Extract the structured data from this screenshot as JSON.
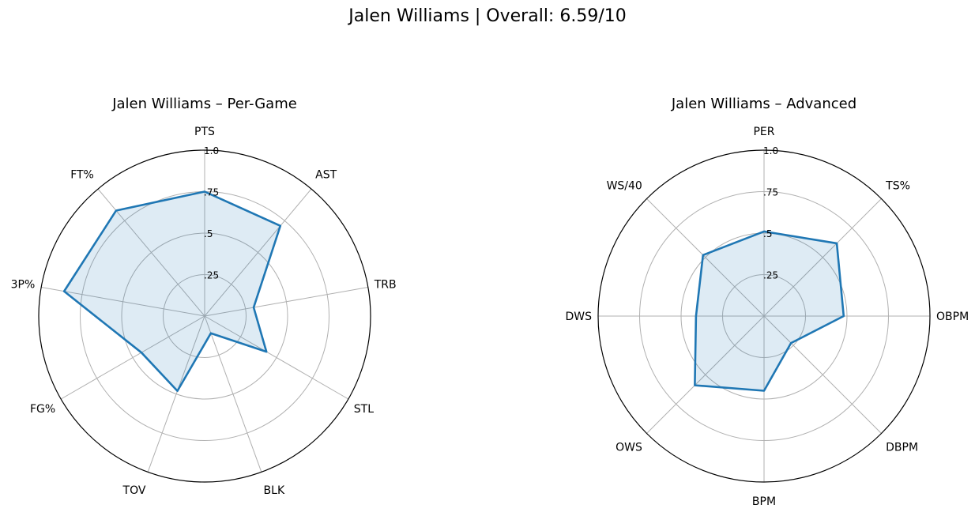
{
  "figure_title": "Jalen Williams | Overall: 6.59/10",
  "colors": {
    "line": "#1f77b4",
    "fill": "#1f77b4",
    "grid": "#b0b0b0",
    "frame": "#000000"
  },
  "chart_data": [
    {
      "type": "radar",
      "title": "Jalen Williams – Per-Game",
      "categories": [
        "PTS",
        "AST",
        "TRB",
        "STL",
        "BLK",
        "TOV",
        "FG%",
        "3P%",
        "FT%"
      ],
      "values": [
        0.75,
        0.71,
        0.3,
        0.43,
        0.11,
        0.48,
        0.44,
        0.86,
        0.83
      ],
      "rlim": [
        0,
        1
      ],
      "rticks": [
        0.25,
        0.5,
        0.75,
        1.0
      ],
      "rtick_labels": [
        ".25",
        ".5",
        ".75",
        "1.0"
      ],
      "grid": true
    },
    {
      "type": "radar",
      "title": "Jalen Williams – Advanced",
      "categories": [
        "PER",
        "TS%",
        "OBPM",
        "DBPM",
        "BPM",
        "OWS",
        "DWS",
        "WS/40"
      ],
      "values": [
        0.51,
        0.62,
        0.48,
        0.23,
        0.45,
        0.59,
        0.41,
        0.52
      ],
      "rlim": [
        0,
        1
      ],
      "rticks": [
        0.25,
        0.5,
        0.75,
        1.0
      ],
      "rtick_labels": [
        ".25",
        ".5",
        ".75",
        "1.0"
      ],
      "grid": true
    }
  ]
}
